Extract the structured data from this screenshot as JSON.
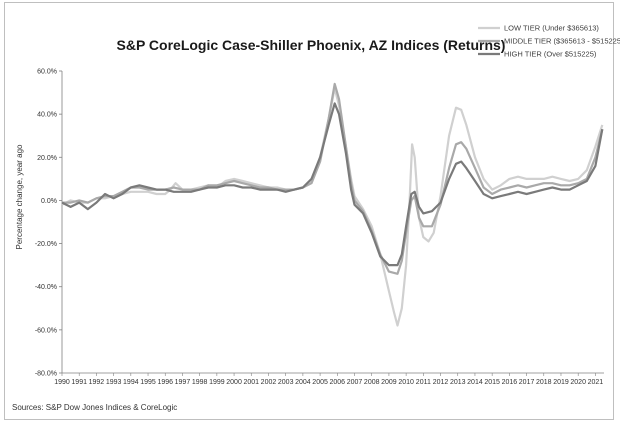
{
  "chart_data": {
    "type": "line",
    "title": "S&P CoreLogic Case-Shiller Phoenix, AZ Indices (Returns)",
    "xlabel": "",
    "ylabel": "Percentage change, year ago",
    "source": "Sources: S&P Dow Jones Indices & CoreLogic",
    "ylim": [
      -80,
      60
    ],
    "y_ticks": [
      "60.0%",
      "40.0%",
      "20.0%",
      "0.0%",
      "-20.0%",
      "-40.0%",
      "-60.0%",
      "-80.0%"
    ],
    "y_tick_values": [
      60,
      40,
      20,
      0,
      -20,
      -40,
      -60,
      -80
    ],
    "xlim": [
      1990,
      2021.5
    ],
    "x_ticks": [
      "1990",
      "1991",
      "1992",
      "1993",
      "1994",
      "1995",
      "1996",
      "1997",
      "1998",
      "1999",
      "2000",
      "2001",
      "2002",
      "2003",
      "2004",
      "2005",
      "2006",
      "2007",
      "2008",
      "2009",
      "2010",
      "2011",
      "2012",
      "2013",
      "2014",
      "2015",
      "2016",
      "2017",
      "2018",
      "2019",
      "2020",
      "2021"
    ],
    "grid": false,
    "legend_position": "top-right",
    "series": [
      {
        "name": "LOW TIER (Under $365613)",
        "color": "#d0d0d0",
        "points": [
          [
            1990,
            -2
          ],
          [
            1990.5,
            0
          ],
          [
            1991,
            -1
          ],
          [
            1991.5,
            -1
          ],
          [
            1992,
            1
          ],
          [
            1992.5,
            1
          ],
          [
            1993,
            2
          ],
          [
            1993.5,
            3
          ],
          [
            1994,
            4
          ],
          [
            1994.5,
            4
          ],
          [
            1995,
            4
          ],
          [
            1995.5,
            3
          ],
          [
            1996,
            3
          ],
          [
            1996.3,
            5
          ],
          [
            1996.6,
            8
          ],
          [
            1997,
            5
          ],
          [
            1997.5,
            5
          ],
          [
            1998,
            6
          ],
          [
            1998.5,
            7
          ],
          [
            1999,
            6
          ],
          [
            1999.5,
            9
          ],
          [
            2000,
            10
          ],
          [
            2000.5,
            9
          ],
          [
            2001,
            8
          ],
          [
            2001.5,
            7
          ],
          [
            2002,
            6
          ],
          [
            2002.5,
            6
          ],
          [
            2003,
            5
          ],
          [
            2003.5,
            5
          ],
          [
            2004,
            6
          ],
          [
            2004.5,
            9
          ],
          [
            2005,
            20
          ],
          [
            2005.5,
            38
          ],
          [
            2005.85,
            52
          ],
          [
            2006.1,
            44
          ],
          [
            2006.5,
            25
          ],
          [
            2006.8,
            10
          ],
          [
            2007,
            2
          ],
          [
            2007.5,
            -4
          ],
          [
            2008,
            -12
          ],
          [
            2008.5,
            -25
          ],
          [
            2009,
            -42
          ],
          [
            2009.3,
            -52
          ],
          [
            2009.5,
            -58
          ],
          [
            2009.75,
            -50
          ],
          [
            2010,
            -30
          ],
          [
            2010.2,
            0
          ],
          [
            2010.35,
            26
          ],
          [
            2010.5,
            20
          ],
          [
            2010.75,
            -8
          ],
          [
            2011,
            -17
          ],
          [
            2011.3,
            -19
          ],
          [
            2011.6,
            -15
          ],
          [
            2012,
            2
          ],
          [
            2012.5,
            30
          ],
          [
            2012.9,
            43
          ],
          [
            2013.2,
            42
          ],
          [
            2013.5,
            35
          ],
          [
            2014,
            20
          ],
          [
            2014.5,
            10
          ],
          [
            2015,
            5
          ],
          [
            2015.5,
            7
          ],
          [
            2016,
            10
          ],
          [
            2016.5,
            11
          ],
          [
            2017,
            10
          ],
          [
            2017.5,
            10
          ],
          [
            2018,
            10
          ],
          [
            2018.5,
            11
          ],
          [
            2019,
            10
          ],
          [
            2019.5,
            9
          ],
          [
            2020,
            10
          ],
          [
            2020.5,
            14
          ],
          [
            2021,
            25
          ],
          [
            2021.4,
            35
          ]
        ]
      },
      {
        "name": "MIDDLE TIER ($365613 - $515225)",
        "color": "#a9a9a9",
        "points": [
          [
            1990,
            -1
          ],
          [
            1990.5,
            -1
          ],
          [
            1991,
            0
          ],
          [
            1991.5,
            -1
          ],
          [
            1992,
            1
          ],
          [
            1992.5,
            2
          ],
          [
            1993,
            2
          ],
          [
            1993.5,
            4
          ],
          [
            1994,
            6
          ],
          [
            1994.5,
            6
          ],
          [
            1995,
            5
          ],
          [
            1995.5,
            5
          ],
          [
            1996,
            5
          ],
          [
            1996.5,
            6
          ],
          [
            1997,
            5
          ],
          [
            1997.5,
            5
          ],
          [
            1998,
            5
          ],
          [
            1998.5,
            7
          ],
          [
            1999,
            7
          ],
          [
            1999.5,
            8
          ],
          [
            2000,
            9
          ],
          [
            2000.5,
            8
          ],
          [
            2001,
            7
          ],
          [
            2001.5,
            6
          ],
          [
            2002,
            6
          ],
          [
            2002.5,
            5
          ],
          [
            2003,
            5
          ],
          [
            2003.5,
            5
          ],
          [
            2004,
            6
          ],
          [
            2004.5,
            8
          ],
          [
            2005,
            18
          ],
          [
            2005.5,
            38
          ],
          [
            2005.85,
            54
          ],
          [
            2006.1,
            47
          ],
          [
            2006.5,
            25
          ],
          [
            2006.8,
            8
          ],
          [
            2007,
            0
          ],
          [
            2007.5,
            -5
          ],
          [
            2008,
            -14
          ],
          [
            2008.5,
            -25
          ],
          [
            2009,
            -33
          ],
          [
            2009.5,
            -34
          ],
          [
            2009.75,
            -28
          ],
          [
            2010,
            -15
          ],
          [
            2010.3,
            0
          ],
          [
            2010.5,
            2
          ],
          [
            2010.75,
            -8
          ],
          [
            2011,
            -12
          ],
          [
            2011.5,
            -12
          ],
          [
            2012,
            -2
          ],
          [
            2012.5,
            15
          ],
          [
            2012.9,
            26
          ],
          [
            2013.2,
            27
          ],
          [
            2013.5,
            24
          ],
          [
            2014,
            15
          ],
          [
            2014.5,
            6
          ],
          [
            2015,
            3
          ],
          [
            2015.5,
            5
          ],
          [
            2016,
            6
          ],
          [
            2016.5,
            7
          ],
          [
            2017,
            6
          ],
          [
            2017.5,
            7
          ],
          [
            2018,
            8
          ],
          [
            2018.5,
            8
          ],
          [
            2019,
            7
          ],
          [
            2019.5,
            7
          ],
          [
            2020,
            8
          ],
          [
            2020.5,
            10
          ],
          [
            2021,
            20
          ],
          [
            2021.4,
            33
          ]
        ]
      },
      {
        "name": "HIGH TIER (Over $515225)",
        "color": "#7a7a7a",
        "points": [
          [
            1990,
            -1
          ],
          [
            1990.5,
            -3
          ],
          [
            1991,
            -1
          ],
          [
            1991.5,
            -4
          ],
          [
            1992,
            -1
          ],
          [
            1992.5,
            3
          ],
          [
            1993,
            1
          ],
          [
            1993.5,
            3
          ],
          [
            1994,
            6
          ],
          [
            1994.5,
            7
          ],
          [
            1995,
            6
          ],
          [
            1995.5,
            5
          ],
          [
            1996,
            5
          ],
          [
            1996.5,
            4
          ],
          [
            1997,
            4
          ],
          [
            1997.5,
            4
          ],
          [
            1998,
            5
          ],
          [
            1998.5,
            6
          ],
          [
            1999,
            6
          ],
          [
            1999.5,
            7
          ],
          [
            2000,
            7
          ],
          [
            2000.5,
            6
          ],
          [
            2001,
            6
          ],
          [
            2001.5,
            5
          ],
          [
            2002,
            5
          ],
          [
            2002.5,
            5
          ],
          [
            2003,
            4
          ],
          [
            2003.5,
            5
          ],
          [
            2004,
            6
          ],
          [
            2004.5,
            10
          ],
          [
            2005,
            20
          ],
          [
            2005.5,
            35
          ],
          [
            2005.85,
            45
          ],
          [
            2006.1,
            40
          ],
          [
            2006.5,
            22
          ],
          [
            2006.8,
            5
          ],
          [
            2007,
            -2
          ],
          [
            2007.5,
            -6
          ],
          [
            2008,
            -15
          ],
          [
            2008.5,
            -26
          ],
          [
            2009,
            -30
          ],
          [
            2009.5,
            -30
          ],
          [
            2009.75,
            -25
          ],
          [
            2010,
            -12
          ],
          [
            2010.3,
            3
          ],
          [
            2010.5,
            4
          ],
          [
            2010.75,
            -3
          ],
          [
            2011,
            -6
          ],
          [
            2011.5,
            -5
          ],
          [
            2012,
            -1
          ],
          [
            2012.5,
            10
          ],
          [
            2012.9,
            17
          ],
          [
            2013.2,
            18
          ],
          [
            2013.5,
            15
          ],
          [
            2014,
            9
          ],
          [
            2014.5,
            3
          ],
          [
            2015,
            1
          ],
          [
            2015.5,
            2
          ],
          [
            2016,
            3
          ],
          [
            2016.5,
            4
          ],
          [
            2017,
            3
          ],
          [
            2017.5,
            4
          ],
          [
            2018,
            5
          ],
          [
            2018.5,
            6
          ],
          [
            2019,
            5
          ],
          [
            2019.5,
            5
          ],
          [
            2020,
            7
          ],
          [
            2020.5,
            9
          ],
          [
            2021,
            16
          ],
          [
            2021.4,
            33
          ]
        ]
      }
    ]
  }
}
